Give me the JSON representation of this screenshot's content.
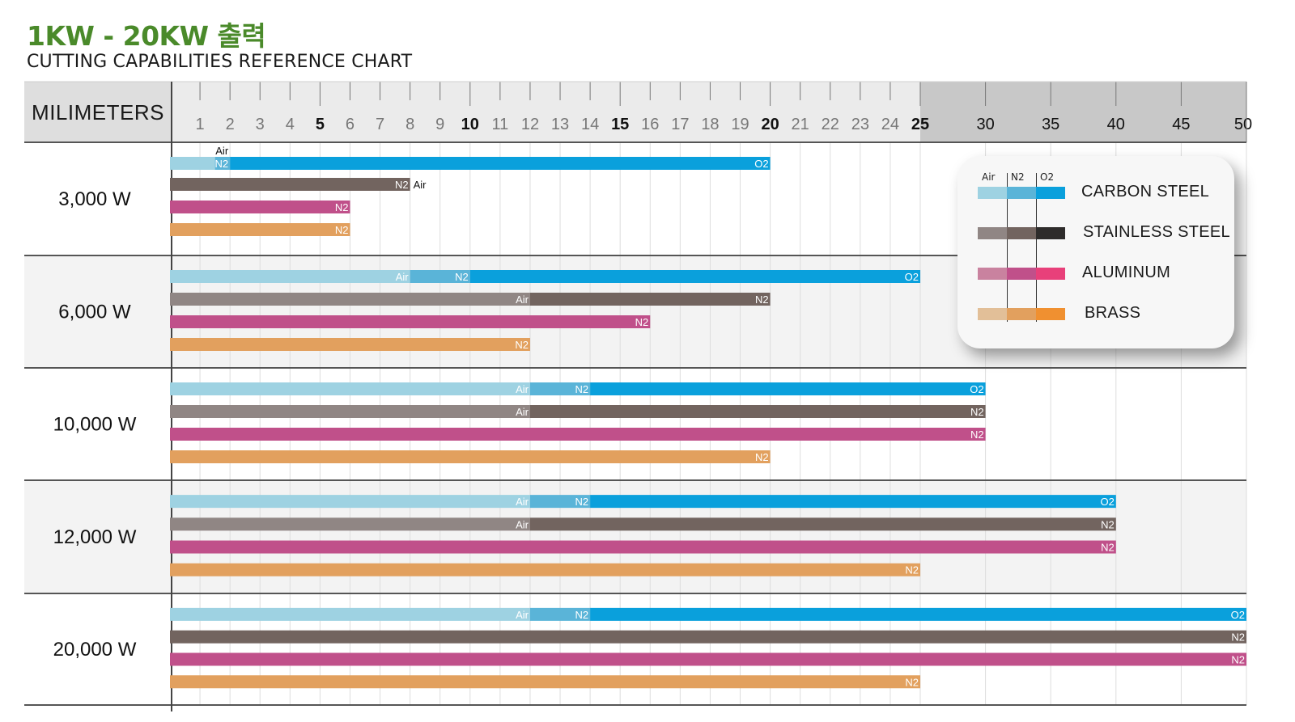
{
  "title": "1KW - 20KW 출력",
  "subtitle": "CUTTING CAPABILITIES REFERENCE CHART",
  "colors": {
    "carbon_steel": [
      "#9ed2e2",
      "#5ab4d8",
      "#0aa0dc"
    ],
    "stainless_steel": [
      "#908684",
      "#72645f",
      "#2e2c2b"
    ],
    "aluminum": [
      "#c9829f",
      "#c0508a",
      "#e8407a"
    ],
    "brass": [
      "#e2bf98",
      "#e2a05e",
      "#f09030"
    ],
    "header_bg": "#c8c8c8",
    "label_bg": "#dedede"
  },
  "chart_data": {
    "type": "bar",
    "orientation": "horizontal",
    "xlabel": "MILIMETERS",
    "x_ticks": [
      1,
      2,
      3,
      4,
      5,
      6,
      7,
      8,
      9,
      10,
      11,
      12,
      13,
      14,
      15,
      16,
      17,
      18,
      19,
      20,
      21,
      22,
      23,
      24,
      25,
      30,
      35,
      40,
      45,
      50
    ],
    "x_ticks_bold": [
      5,
      10,
      15,
      20
    ],
    "xlim": [
      0,
      50
    ],
    "scale_note": "0–25 linear; 25–50 compressed, shaded",
    "legend": {
      "gas_headers": [
        "Air",
        "N2",
        "O2"
      ],
      "materials": [
        "CARBON STEEL",
        "STAINLESS STEEL",
        "ALUMINUM",
        "BRASS"
      ]
    },
    "groups": [
      {
        "power": "3,000 W",
        "bars": [
          {
            "material": "CARBON STEEL",
            "segments": [
              {
                "gas": "Air",
                "from": 0,
                "to": 1.5
              },
              {
                "gas": "N2",
                "from": 1.5,
                "to": 2
              },
              {
                "gas": "O2",
                "from": 2,
                "to": 20
              }
            ],
            "labels": [
              {
                "text": "Air",
                "at": 2,
                "pos": "above"
              },
              {
                "text": "N2",
                "at": 2,
                "pos": "inside"
              },
              {
                "text": "O2",
                "at": 20,
                "pos": "inside"
              }
            ]
          },
          {
            "material": "STAINLESS STEEL",
            "segments": [
              {
                "gas": "N2",
                "from": 0,
                "to": 8
              }
            ],
            "labels": [
              {
                "text": "N2",
                "at": 8,
                "pos": "inside"
              },
              {
                "text": "Air",
                "at": 8,
                "pos": "outside"
              }
            ]
          },
          {
            "material": "ALUMINUM",
            "segments": [
              {
                "gas": "N2",
                "from": 0,
                "to": 6
              }
            ],
            "labels": [
              {
                "text": "N2",
                "at": 6,
                "pos": "inside"
              }
            ]
          },
          {
            "material": "BRASS",
            "segments": [
              {
                "gas": "N2",
                "from": 0,
                "to": 6
              }
            ],
            "labels": [
              {
                "text": "N2",
                "at": 6,
                "pos": "inside"
              }
            ]
          }
        ]
      },
      {
        "power": "6,000 W",
        "bars": [
          {
            "material": "CARBON STEEL",
            "segments": [
              {
                "gas": "Air",
                "from": 0,
                "to": 8
              },
              {
                "gas": "N2",
                "from": 8,
                "to": 10
              },
              {
                "gas": "O2",
                "from": 10,
                "to": 25
              }
            ],
            "labels": [
              {
                "text": "Air",
                "at": 8,
                "pos": "inside"
              },
              {
                "text": "N2",
                "at": 10,
                "pos": "inside"
              },
              {
                "text": "O2",
                "at": 25,
                "pos": "inside"
              }
            ]
          },
          {
            "material": "STAINLESS STEEL",
            "segments": [
              {
                "gas": "Air",
                "from": 0,
                "to": 12
              },
              {
                "gas": "N2",
                "from": 12,
                "to": 20
              }
            ],
            "labels": [
              {
                "text": "Air",
                "at": 12,
                "pos": "inside"
              },
              {
                "text": "N2",
                "at": 20,
                "pos": "inside"
              }
            ]
          },
          {
            "material": "ALUMINUM",
            "segments": [
              {
                "gas": "N2",
                "from": 0,
                "to": 16
              }
            ],
            "labels": [
              {
                "text": "N2",
                "at": 16,
                "pos": "inside"
              }
            ]
          },
          {
            "material": "BRASS",
            "segments": [
              {
                "gas": "N2",
                "from": 0,
                "to": 12
              }
            ],
            "labels": [
              {
                "text": "N2",
                "at": 12,
                "pos": "inside"
              }
            ]
          }
        ]
      },
      {
        "power": "10,000 W",
        "bars": [
          {
            "material": "CARBON STEEL",
            "segments": [
              {
                "gas": "Air",
                "from": 0,
                "to": 12
              },
              {
                "gas": "N2",
                "from": 12,
                "to": 14
              },
              {
                "gas": "O2",
                "from": 14,
                "to": 30
              }
            ],
            "labels": [
              {
                "text": "Air",
                "at": 12,
                "pos": "inside"
              },
              {
                "text": "N2",
                "at": 14,
                "pos": "inside"
              },
              {
                "text": "O2",
                "at": 30,
                "pos": "inside"
              }
            ]
          },
          {
            "material": "STAINLESS STEEL",
            "segments": [
              {
                "gas": "Air",
                "from": 0,
                "to": 12
              },
              {
                "gas": "N2",
                "from": 12,
                "to": 30
              }
            ],
            "labels": [
              {
                "text": "Air",
                "at": 12,
                "pos": "inside"
              },
              {
                "text": "N2",
                "at": 30,
                "pos": "inside"
              }
            ]
          },
          {
            "material": "ALUMINUM",
            "segments": [
              {
                "gas": "N2",
                "from": 0,
                "to": 30
              }
            ],
            "labels": [
              {
                "text": "N2",
                "at": 30,
                "pos": "inside"
              }
            ]
          },
          {
            "material": "BRASS",
            "segments": [
              {
                "gas": "N2",
                "from": 0,
                "to": 20
              }
            ],
            "labels": [
              {
                "text": "N2",
                "at": 20,
                "pos": "inside"
              }
            ]
          }
        ]
      },
      {
        "power": "12,000 W",
        "bars": [
          {
            "material": "CARBON STEEL",
            "segments": [
              {
                "gas": "Air",
                "from": 0,
                "to": 12
              },
              {
                "gas": "N2",
                "from": 12,
                "to": 14
              },
              {
                "gas": "O2",
                "from": 14,
                "to": 40
              }
            ],
            "labels": [
              {
                "text": "Air",
                "at": 12,
                "pos": "inside"
              },
              {
                "text": "N2",
                "at": 14,
                "pos": "inside"
              },
              {
                "text": "O2",
                "at": 40,
                "pos": "inside"
              }
            ]
          },
          {
            "material": "STAINLESS STEEL",
            "segments": [
              {
                "gas": "Air",
                "from": 0,
                "to": 12
              },
              {
                "gas": "N2",
                "from": 12,
                "to": 40
              }
            ],
            "labels": [
              {
                "text": "Air",
                "at": 12,
                "pos": "inside"
              },
              {
                "text": "N2",
                "at": 40,
                "pos": "inside"
              }
            ]
          },
          {
            "material": "ALUMINUM",
            "segments": [
              {
                "gas": "N2",
                "from": 0,
                "to": 40
              }
            ],
            "labels": [
              {
                "text": "N2",
                "at": 40,
                "pos": "inside"
              }
            ]
          },
          {
            "material": "BRASS",
            "segments": [
              {
                "gas": "N2",
                "from": 0,
                "to": 25
              }
            ],
            "labels": [
              {
                "text": "N2",
                "at": 25,
                "pos": "inside"
              }
            ]
          }
        ]
      },
      {
        "power": "20,000 W",
        "bars": [
          {
            "material": "CARBON STEEL",
            "segments": [
              {
                "gas": "Air",
                "from": 0,
                "to": 12
              },
              {
                "gas": "N2",
                "from": 12,
                "to": 14
              },
              {
                "gas": "O2",
                "from": 14,
                "to": 50
              }
            ],
            "labels": [
              {
                "text": "Air",
                "at": 12,
                "pos": "inside"
              },
              {
                "text": "N2",
                "at": 14,
                "pos": "inside"
              },
              {
                "text": "O2",
                "at": 50,
                "pos": "inside"
              }
            ]
          },
          {
            "material": "STAINLESS STEEL",
            "segments": [
              {
                "gas": "N2",
                "from": 0,
                "to": 50
              }
            ],
            "labels": [
              {
                "text": "N2",
                "at": 50,
                "pos": "inside"
              }
            ]
          },
          {
            "material": "ALUMINUM",
            "segments": [
              {
                "gas": "N2",
                "from": 0,
                "to": 50
              }
            ],
            "labels": [
              {
                "text": "N2",
                "at": 50,
                "pos": "inside"
              }
            ]
          },
          {
            "material": "BRASS",
            "segments": [
              {
                "gas": "N2",
                "from": 0,
                "to": 25
              }
            ],
            "labels": [
              {
                "text": "N2",
                "at": 25,
                "pos": "inside"
              }
            ]
          }
        ]
      }
    ]
  }
}
